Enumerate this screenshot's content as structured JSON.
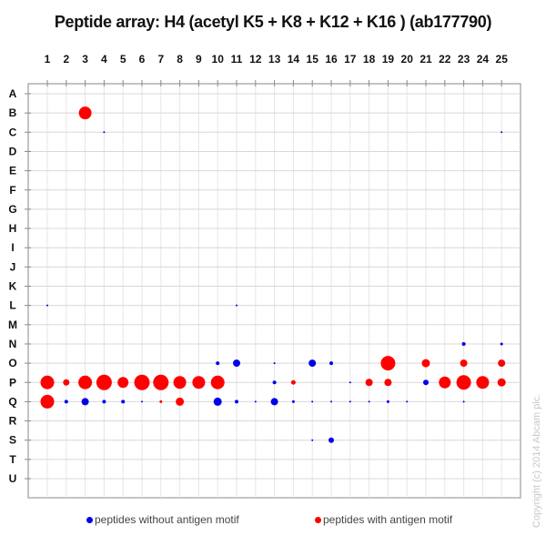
{
  "chart_data": {
    "type": "scatter",
    "title": "Peptide array: H4 (acetyl K5 + K8 + K12 + K16 ) (ab177790)",
    "xlabel": "",
    "ylabel": "",
    "x_ticks": [
      "1",
      "2",
      "3",
      "4",
      "5",
      "6",
      "7",
      "8",
      "9",
      "10",
      "11",
      "12",
      "13",
      "14",
      "15",
      "16",
      "17",
      "18",
      "19",
      "20",
      "21",
      "22",
      "23",
      "24",
      "25"
    ],
    "y_ticks": [
      "A",
      "B",
      "C",
      "D",
      "E",
      "F",
      "G",
      "H",
      "I",
      "J",
      "K",
      "L",
      "M",
      "N",
      "O",
      "P",
      "Q",
      "R",
      "S",
      "T",
      "U"
    ],
    "grid": true,
    "legend_position": "bottom",
    "series": [
      {
        "name": "peptides without antigen motif",
        "color": "#0000ee",
        "points": [
          {
            "col": 4,
            "row": "C",
            "size": 1
          },
          {
            "col": 25,
            "row": "C",
            "size": 1
          },
          {
            "col": 1,
            "row": "L",
            "size": 1
          },
          {
            "col": 11,
            "row": "L",
            "size": 1
          },
          {
            "col": 23,
            "row": "N",
            "size": 2
          },
          {
            "col": 25,
            "row": "N",
            "size": 1.5
          },
          {
            "col": 10,
            "row": "O",
            "size": 2
          },
          {
            "col": 11,
            "row": "O",
            "size": 4
          },
          {
            "col": 13,
            "row": "O",
            "size": 1
          },
          {
            "col": 15,
            "row": "O",
            "size": 4
          },
          {
            "col": 16,
            "row": "O",
            "size": 2
          },
          {
            "col": 13,
            "row": "P",
            "size": 2
          },
          {
            "col": 17,
            "row": "P",
            "size": 1
          },
          {
            "col": 21,
            "row": "P",
            "size": 3
          },
          {
            "col": 2,
            "row": "Q",
            "size": 2
          },
          {
            "col": 3,
            "row": "Q",
            "size": 4
          },
          {
            "col": 4,
            "row": "Q",
            "size": 2
          },
          {
            "col": 5,
            "row": "Q",
            "size": 2
          },
          {
            "col": 6,
            "row": "Q",
            "size": 1
          },
          {
            "col": 10,
            "row": "Q",
            "size": 4.5
          },
          {
            "col": 11,
            "row": "Q",
            "size": 2
          },
          {
            "col": 12,
            "row": "Q",
            "size": 1
          },
          {
            "col": 13,
            "row": "Q",
            "size": 4
          },
          {
            "col": 14,
            "row": "Q",
            "size": 1.5
          },
          {
            "col": 15,
            "row": "Q",
            "size": 1
          },
          {
            "col": 16,
            "row": "Q",
            "size": 1
          },
          {
            "col": 17,
            "row": "Q",
            "size": 1
          },
          {
            "col": 18,
            "row": "Q",
            "size": 1
          },
          {
            "col": 19,
            "row": "Q",
            "size": 1.5
          },
          {
            "col": 20,
            "row": "Q",
            "size": 1
          },
          {
            "col": 23,
            "row": "Q",
            "size": 1
          },
          {
            "col": 15,
            "row": "S",
            "size": 1
          },
          {
            "col": 16,
            "row": "S",
            "size": 3
          }
        ]
      },
      {
        "name": "peptides with antigen motif",
        "color": "#ff0000",
        "points": [
          {
            "col": 3,
            "row": "B",
            "size": 7
          },
          {
            "col": 19,
            "row": "O",
            "size": 8
          },
          {
            "col": 21,
            "row": "O",
            "size": 4.5
          },
          {
            "col": 23,
            "row": "O",
            "size": 4
          },
          {
            "col": 25,
            "row": "O",
            "size": 4
          },
          {
            "col": 1,
            "row": "P",
            "size": 7.5
          },
          {
            "col": 2,
            "row": "P",
            "size": 3.5
          },
          {
            "col": 3,
            "row": "P",
            "size": 7.5
          },
          {
            "col": 4,
            "row": "P",
            "size": 8.5
          },
          {
            "col": 5,
            "row": "P",
            "size": 6
          },
          {
            "col": 6,
            "row": "P",
            "size": 8.5
          },
          {
            "col": 7,
            "row": "P",
            "size": 8.5
          },
          {
            "col": 8,
            "row": "P",
            "size": 7
          },
          {
            "col": 9,
            "row": "P",
            "size": 7
          },
          {
            "col": 10,
            "row": "P",
            "size": 7.5
          },
          {
            "col": 14,
            "row": "P",
            "size": 2.5
          },
          {
            "col": 18,
            "row": "P",
            "size": 4
          },
          {
            "col": 19,
            "row": "P",
            "size": 4
          },
          {
            "col": 22,
            "row": "P",
            "size": 6.5
          },
          {
            "col": 23,
            "row": "P",
            "size": 8
          },
          {
            "col": 24,
            "row": "P",
            "size": 7
          },
          {
            "col": 25,
            "row": "P",
            "size": 4.5
          },
          {
            "col": 1,
            "row": "Q",
            "size": 7.5
          },
          {
            "col": 7,
            "row": "Q",
            "size": 1.5
          },
          {
            "col": 8,
            "row": "Q",
            "size": 4.5
          }
        ]
      }
    ]
  },
  "legend": {
    "items": [
      {
        "label": "peptides without antigen motif",
        "color": "#0000ee"
      },
      {
        "label": "peptides with antigen motif",
        "color": "#ff0000"
      }
    ]
  },
  "copyright": "Copyright (c) 2014 Abcam plc."
}
